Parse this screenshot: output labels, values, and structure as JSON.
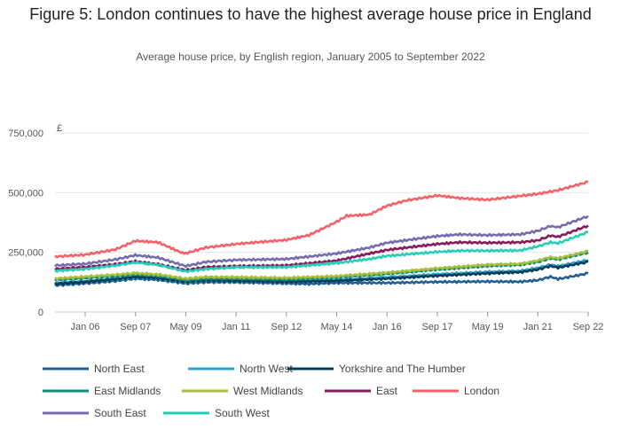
{
  "chart_data": {
    "type": "line",
    "title": "Figure 5: London continues to have the highest average house price in England",
    "subtitle": "Average house price, by English region, January 2005 to September 2022",
    "ylabel": "£",
    "ylim": [
      0,
      750000
    ],
    "yticks": [
      {
        "value": 0,
        "label": "0"
      },
      {
        "value": 250000,
        "label": "250,000"
      },
      {
        "value": 500000,
        "label": "500,000"
      },
      {
        "value": 750000,
        "label": "750,000"
      }
    ],
    "xlim": [
      "2005-01",
      "2022-09"
    ],
    "xticks": [
      {
        "value": "2006-01",
        "label": "Jan 06"
      },
      {
        "value": "2007-09",
        "label": "Sep 07"
      },
      {
        "value": "2009-05",
        "label": "May 09"
      },
      {
        "value": "2011-01",
        "label": "Jan 11"
      },
      {
        "value": "2012-09",
        "label": "Sep 12"
      },
      {
        "value": "2014-05",
        "label": "May 14"
      },
      {
        "value": "2016-01",
        "label": "Jan 16"
      },
      {
        "value": "2017-09",
        "label": "Sep 17"
      },
      {
        "value": "2019-05",
        "label": "May 19"
      },
      {
        "value": "2021-01",
        "label": "Jan 21"
      },
      {
        "value": "2022-09",
        "label": "Sep 22"
      }
    ],
    "grid": "horizontal",
    "legend_position": "bottom",
    "series": [
      {
        "name": "North East",
        "color": "#206095",
        "points": [
          [
            "2005-01",
            112000
          ],
          [
            "2006-01",
            120000
          ],
          [
            "2007-01",
            130000
          ],
          [
            "2007-09",
            140000
          ],
          [
            "2008-06",
            135000
          ],
          [
            "2009-05",
            120000
          ],
          [
            "2010-01",
            125000
          ],
          [
            "2011-01",
            125000
          ],
          [
            "2012-09",
            120000
          ],
          [
            "2013-06",
            118000
          ],
          [
            "2014-05",
            122000
          ],
          [
            "2016-01",
            122000
          ],
          [
            "2017-09",
            126000
          ],
          [
            "2019-05",
            128000
          ],
          [
            "2020-06",
            127000
          ],
          [
            "2021-01",
            133000
          ],
          [
            "2021-06",
            148000
          ],
          [
            "2021-09",
            138000
          ],
          [
            "2022-09",
            162000
          ]
        ]
      },
      {
        "name": "North West",
        "color": "#27a0cc",
        "points": [
          [
            "2005-01",
            122000
          ],
          [
            "2006-01",
            128000
          ],
          [
            "2007-01",
            138000
          ],
          [
            "2007-09",
            147000
          ],
          [
            "2008-06",
            142000
          ],
          [
            "2009-05",
            127000
          ],
          [
            "2010-01",
            133000
          ],
          [
            "2011-01",
            132000
          ],
          [
            "2012-09",
            128000
          ],
          [
            "2014-05",
            133000
          ],
          [
            "2016-01",
            145000
          ],
          [
            "2017-09",
            158000
          ],
          [
            "2019-05",
            168000
          ],
          [
            "2020-06",
            172000
          ],
          [
            "2021-01",
            185000
          ],
          [
            "2021-06",
            198000
          ],
          [
            "2021-09",
            192000
          ],
          [
            "2022-09",
            218000
          ]
        ]
      },
      {
        "name": "Yorkshire and The Humber",
        "color": "#003c57",
        "points": [
          [
            "2005-01",
            118000
          ],
          [
            "2006-01",
            126000
          ],
          [
            "2007-01",
            138000
          ],
          [
            "2007-09",
            148000
          ],
          [
            "2008-06",
            142000
          ],
          [
            "2009-05",
            127000
          ],
          [
            "2010-01",
            133000
          ],
          [
            "2011-01",
            131000
          ],
          [
            "2012-09",
            127000
          ],
          [
            "2014-05",
            131000
          ],
          [
            "2016-01",
            140000
          ],
          [
            "2017-09",
            152000
          ],
          [
            "2019-05",
            162000
          ],
          [
            "2020-06",
            167000
          ],
          [
            "2021-01",
            178000
          ],
          [
            "2021-06",
            193000
          ],
          [
            "2021-09",
            186000
          ],
          [
            "2022-09",
            210000
          ]
        ]
      },
      {
        "name": "East Midlands",
        "color": "#118c7b",
        "points": [
          [
            "2005-01",
            135000
          ],
          [
            "2006-01",
            142000
          ],
          [
            "2007-01",
            150000
          ],
          [
            "2007-09",
            158000
          ],
          [
            "2008-06",
            152000
          ],
          [
            "2009-05",
            133000
          ],
          [
            "2010-01",
            140000
          ],
          [
            "2011-01",
            140000
          ],
          [
            "2012-09",
            137000
          ],
          [
            "2014-05",
            145000
          ],
          [
            "2016-01",
            160000
          ],
          [
            "2017-09",
            178000
          ],
          [
            "2019-05",
            193000
          ],
          [
            "2020-06",
            198000
          ],
          [
            "2021-01",
            210000
          ],
          [
            "2021-06",
            225000
          ],
          [
            "2021-09",
            220000
          ],
          [
            "2022-09",
            250000
          ]
        ]
      },
      {
        "name": "West Midlands",
        "color": "#a8bd3a",
        "points": [
          [
            "2005-01",
            140000
          ],
          [
            "2006-01",
            148000
          ],
          [
            "2007-01",
            156000
          ],
          [
            "2007-09",
            163000
          ],
          [
            "2008-06",
            157000
          ],
          [
            "2009-05",
            140000
          ],
          [
            "2010-01",
            147000
          ],
          [
            "2011-01",
            146000
          ],
          [
            "2012-09",
            143000
          ],
          [
            "2014-05",
            150000
          ],
          [
            "2016-01",
            165000
          ],
          [
            "2017-09",
            183000
          ],
          [
            "2019-05",
            198000
          ],
          [
            "2020-06",
            202000
          ],
          [
            "2021-01",
            215000
          ],
          [
            "2021-06",
            230000
          ],
          [
            "2021-09",
            225000
          ],
          [
            "2022-09",
            255000
          ]
        ]
      },
      {
        "name": "East",
        "color": "#871a5b",
        "points": [
          [
            "2005-01",
            180000
          ],
          [
            "2006-01",
            188000
          ],
          [
            "2007-01",
            200000
          ],
          [
            "2007-09",
            212000
          ],
          [
            "2008-06",
            200000
          ],
          [
            "2009-05",
            175000
          ],
          [
            "2010-01",
            188000
          ],
          [
            "2011-01",
            192000
          ],
          [
            "2012-09",
            195000
          ],
          [
            "2014-05",
            215000
          ],
          [
            "2015-06",
            245000
          ],
          [
            "2016-01",
            260000
          ],
          [
            "2017-09",
            285000
          ],
          [
            "2018-06",
            292000
          ],
          [
            "2019-05",
            290000
          ],
          [
            "2020-06",
            292000
          ],
          [
            "2021-01",
            300000
          ],
          [
            "2021-06",
            320000
          ],
          [
            "2021-09",
            315000
          ],
          [
            "2022-09",
            362000
          ]
        ]
      },
      {
        "name": "London",
        "color": "#f66068",
        "points": [
          [
            "2005-01",
            232000
          ],
          [
            "2006-01",
            240000
          ],
          [
            "2007-01",
            262000
          ],
          [
            "2007-09",
            298000
          ],
          [
            "2008-06",
            292000
          ],
          [
            "2009-03",
            250000
          ],
          [
            "2009-05",
            246000
          ],
          [
            "2010-01",
            270000
          ],
          [
            "2011-01",
            285000
          ],
          [
            "2012-09",
            302000
          ],
          [
            "2013-06",
            322000
          ],
          [
            "2014-05",
            378000
          ],
          [
            "2014-09",
            403000
          ],
          [
            "2015-06",
            408000
          ],
          [
            "2016-01",
            445000
          ],
          [
            "2016-09",
            468000
          ],
          [
            "2017-09",
            488000
          ],
          [
            "2018-06",
            477000
          ],
          [
            "2019-05",
            470000
          ],
          [
            "2020-01",
            480000
          ],
          [
            "2021-01",
            495000
          ],
          [
            "2021-09",
            510000
          ],
          [
            "2022-09",
            545000
          ]
        ]
      },
      {
        "name": "South East",
        "color": "#746cb1",
        "points": [
          [
            "2005-01",
            195000
          ],
          [
            "2006-01",
            202000
          ],
          [
            "2007-01",
            220000
          ],
          [
            "2007-09",
            238000
          ],
          [
            "2008-06",
            228000
          ],
          [
            "2009-05",
            192000
          ],
          [
            "2010-01",
            210000
          ],
          [
            "2011-01",
            218000
          ],
          [
            "2012-09",
            222000
          ],
          [
            "2014-05",
            245000
          ],
          [
            "2015-06",
            270000
          ],
          [
            "2016-01",
            290000
          ],
          [
            "2017-09",
            318000
          ],
          [
            "2018-06",
            325000
          ],
          [
            "2019-05",
            322000
          ],
          [
            "2020-06",
            325000
          ],
          [
            "2021-01",
            340000
          ],
          [
            "2021-06",
            360000
          ],
          [
            "2021-09",
            355000
          ],
          [
            "2022-09",
            402000
          ]
        ]
      },
      {
        "name": "South West",
        "color": "#22d0b6",
        "points": [
          [
            "2005-01",
            172000
          ],
          [
            "2006-01",
            180000
          ],
          [
            "2007-01",
            195000
          ],
          [
            "2007-09",
            208000
          ],
          [
            "2008-06",
            198000
          ],
          [
            "2009-05",
            170000
          ],
          [
            "2010-01",
            180000
          ],
          [
            "2011-01",
            188000
          ],
          [
            "2012-09",
            188000
          ],
          [
            "2014-05",
            205000
          ],
          [
            "2015-06",
            222000
          ],
          [
            "2016-01",
            235000
          ],
          [
            "2017-09",
            252000
          ],
          [
            "2018-06",
            257000
          ],
          [
            "2019-05",
            257000
          ],
          [
            "2020-06",
            258000
          ],
          [
            "2021-01",
            275000
          ],
          [
            "2021-06",
            292000
          ],
          [
            "2021-09",
            288000
          ],
          [
            "2022-09",
            335000
          ]
        ]
      }
    ]
  }
}
